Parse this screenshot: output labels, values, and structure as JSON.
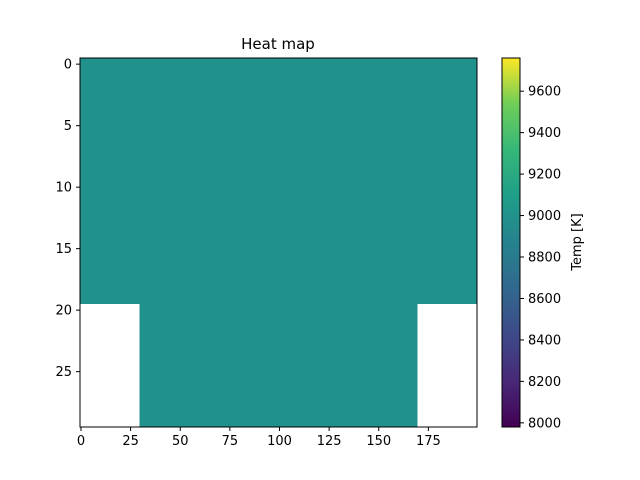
{
  "chart_data": {
    "type": "heatmap",
    "title": "Heat map",
    "xlabel": "",
    "ylabel": "",
    "x_ticks": [
      0,
      25,
      50,
      75,
      100,
      125,
      150,
      175
    ],
    "y_ticks": [
      0,
      5,
      10,
      15,
      20,
      25
    ],
    "xlim": [
      -0.5,
      199.5
    ],
    "ylim": [
      29.5,
      -0.5
    ],
    "y_inverted": true,
    "grid": false,
    "colormap": "viridis",
    "colorbar": {
      "label": "Temp [K]",
      "range": [
        7980,
        9760
      ],
      "ticks": [
        8000,
        8200,
        8400,
        8600,
        8800,
        9000,
        9200,
        9400,
        9600
      ]
    },
    "regions": [
      {
        "rows": [
          0,
          19
        ],
        "cols": [
          0,
          199
        ],
        "value": 8950
      },
      {
        "rows": [
          20,
          29
        ],
        "cols": [
          30,
          169
        ],
        "value": 8950
      },
      {
        "rows": [
          20,
          29
        ],
        "cols": [
          0,
          29
        ],
        "value": null
      },
      {
        "rows": [
          20,
          29
        ],
        "cols": [
          170,
          199
        ],
        "value": null
      }
    ],
    "fill_color": "#21918c"
  }
}
